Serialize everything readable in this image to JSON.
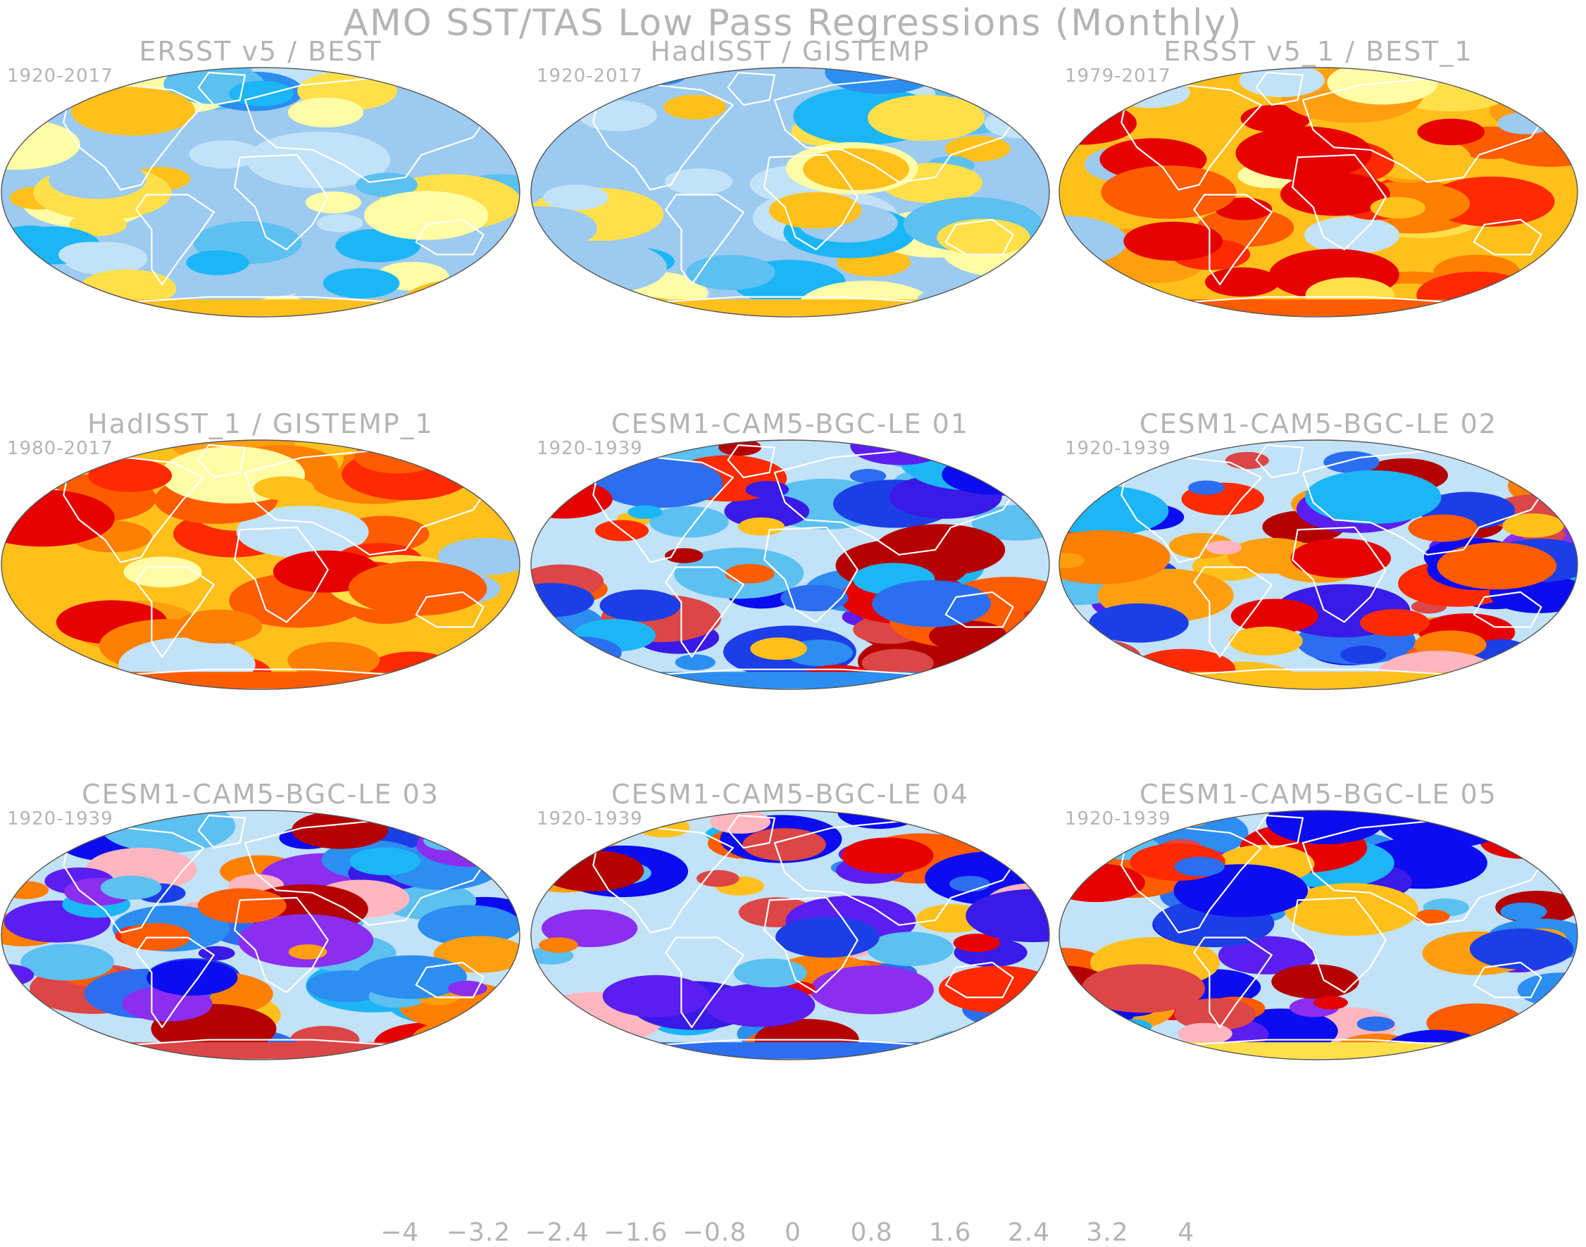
{
  "figure": {
    "title": "AMO SST/TAS Low Pass Regressions (Monthly)"
  },
  "panels": [
    {
      "title": "ERSST v5 / BEST",
      "period": "1920-2017",
      "anomaly_pattern": "weak-cool",
      "max_level": 3
    },
    {
      "title": "HadISST / GISTEMP",
      "period": "1920-2017",
      "anomaly_pattern": "weak-cool",
      "max_level": 3
    },
    {
      "title": "ERSST v5_1 / BEST_1",
      "period": "1979-2017",
      "anomaly_pattern": "warm",
      "max_level": 4
    },
    {
      "title": "HadISST_1 / GISTEMP_1",
      "period": "1980-2017",
      "anomaly_pattern": "warm",
      "max_level": 4
    },
    {
      "title": "CESM1-CAM5-BGC-LE 01",
      "period": "1920-1939",
      "anomaly_pattern": "strong-mixed",
      "max_level": 4
    },
    {
      "title": "CESM1-CAM5-BGC-LE 02",
      "period": "1920-1939",
      "anomaly_pattern": "strong-mixed",
      "max_level": 4
    },
    {
      "title": "CESM1-CAM5-BGC-LE 03",
      "period": "1920-1939",
      "anomaly_pattern": "strong-mixed",
      "max_level": 4
    },
    {
      "title": "CESM1-CAM5-BGC-LE 04",
      "period": "1920-1939",
      "anomaly_pattern": "strong-mixed",
      "max_level": 4
    },
    {
      "title": "CESM1-CAM5-BGC-LE 05",
      "period": "1920-1939",
      "anomaly_pattern": "strong-mixed",
      "max_level": 4
    }
  ],
  "colorbar": {
    "range": [
      -4,
      4
    ],
    "interval": 0.4,
    "colors": [
      "#8b2ef0",
      "#5b1ef0",
      "#3a1ae6",
      "#0c0cf0",
      "#1c3ee6",
      "#2c6ef0",
      "#2c8ef0",
      "#1cb6f6",
      "#5cc0f0",
      "#9ccaf0",
      "#c2e2f8",
      "#fffca6",
      "#ffe04a",
      "#ffc01c",
      "#ff9f10",
      "#ff7f00",
      "#ff5c00",
      "#ff2a00",
      "#e60000",
      "#b40000",
      "#dc4646",
      "#ffb6be"
    ],
    "tick_labels": [
      "−4",
      "−3.2",
      "−2.4",
      "−1.6",
      "−0.8",
      "0",
      "0.8",
      "1.6",
      "2.4",
      "3.2",
      "4"
    ]
  }
}
